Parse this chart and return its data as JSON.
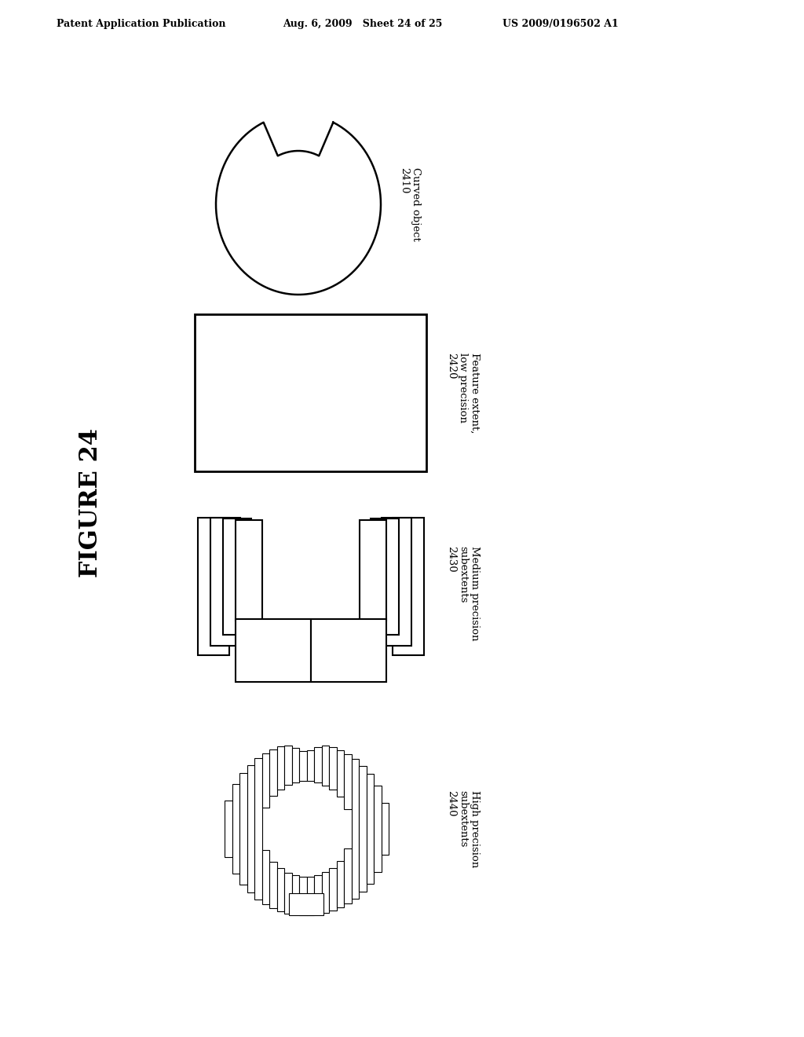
{
  "header_left": "Patent Application Publication",
  "header_mid": "Aug. 6, 2009   Sheet 24 of 25",
  "header_right": "US 2009/0196502 A1",
  "figure_label": "FIGURE 24",
  "label_2440": "High precision\nsubextents\n2440",
  "label_2430": "Medium precision\nsubextents\n2430",
  "label_2420": "Feature extent,\nlow precision\n2420",
  "label_2410": "Curved object\n2410",
  "bg_color": "#ffffff",
  "line_color": "#000000",
  "text_color": "#000000"
}
